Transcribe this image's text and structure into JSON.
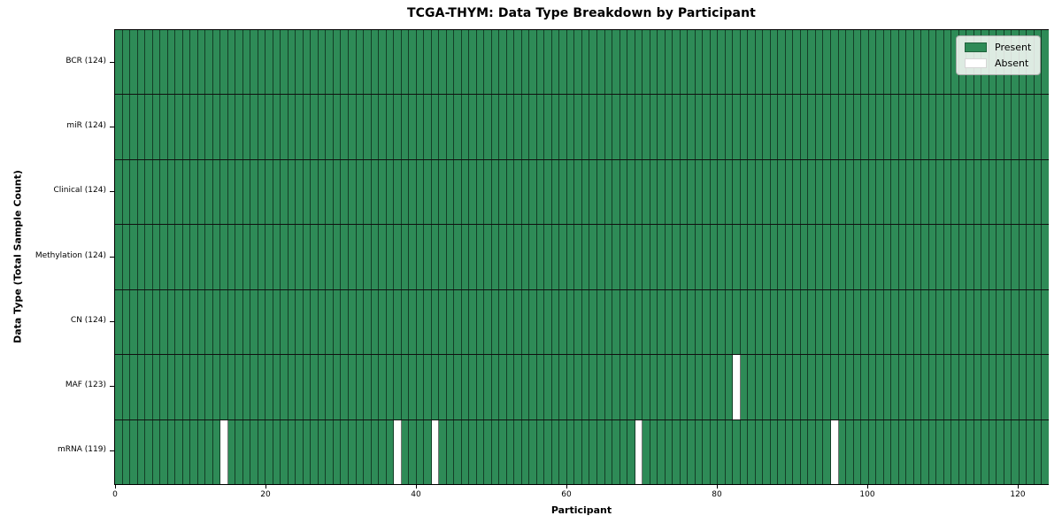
{
  "chart_data": {
    "type": "heatmap",
    "title": "TCGA-THYM: Data Type Breakdown by Participant",
    "xlabel": "Participant",
    "ylabel": "Data Type (Total Sample Count)",
    "n_participants": 124,
    "xlim": [
      0,
      124
    ],
    "x_ticks": [
      0,
      20,
      40,
      60,
      80,
      100,
      120
    ],
    "rows": [
      {
        "label": "BCR (124)",
        "data_type": "BCR",
        "present_count": 124,
        "absent_participants": []
      },
      {
        "label": "miR (124)",
        "data_type": "miR",
        "present_count": 124,
        "absent_participants": []
      },
      {
        "label": "Clinical (124)",
        "data_type": "Clinical",
        "present_count": 124,
        "absent_participants": []
      },
      {
        "label": "Methylation (124)",
        "data_type": "Methylation",
        "present_count": 124,
        "absent_participants": []
      },
      {
        "label": "CN (124)",
        "data_type": "CN",
        "present_count": 124,
        "absent_participants": []
      },
      {
        "label": "MAF (123)",
        "data_type": "MAF",
        "present_count": 123,
        "absent_participants": [
          82
        ]
      },
      {
        "label": "mRNA (119)",
        "data_type": "mRNA",
        "present_count": 119,
        "absent_participants": [
          14,
          37,
          42,
          69,
          95
        ]
      }
    ],
    "colors": {
      "present": "#2e8b57",
      "absent": "#ffffff"
    },
    "legend": [
      {
        "label": "Present",
        "color": "#2e8b57"
      },
      {
        "label": "Absent",
        "color": "#ffffff"
      }
    ],
    "legend_position": "upper-right",
    "grid": true
  }
}
